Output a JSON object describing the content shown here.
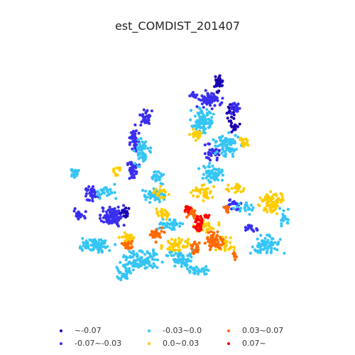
{
  "title": "est_COMDIST_201407",
  "legend": {
    "items": [
      {
        "label": "~-0.07",
        "color": "#1a00b3"
      },
      {
        "label": "-0.07~-0.03",
        "color": "#3a2ff0"
      },
      {
        "label": "-0.03~0.0",
        "color": "#35c5f5"
      },
      {
        "label": "0.0~0.03",
        "color": "#ffcc00"
      },
      {
        "label": "0.03~0.07",
        "color": "#ff6a00"
      },
      {
        "label": "0.07~",
        "color": "#ff0000"
      }
    ]
  }
}
